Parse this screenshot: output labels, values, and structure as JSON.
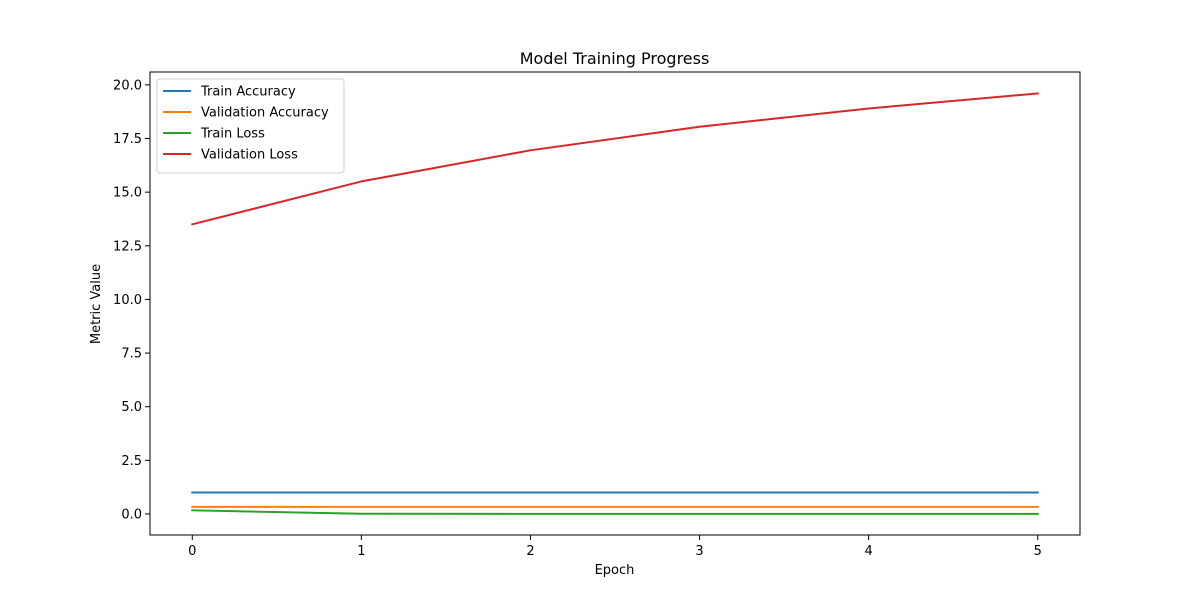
{
  "chart_data": {
    "type": "line",
    "title": "Model Training Progress",
    "xlabel": "Epoch",
    "ylabel": "Metric Value",
    "x": [
      0,
      1,
      2,
      3,
      4,
      5
    ],
    "xlim": [
      -0.25,
      5.25
    ],
    "ylim": [
      -0.98,
      20.6
    ],
    "xticks": [
      0,
      1,
      2,
      3,
      4,
      5
    ],
    "xtick_labels": [
      "0",
      "1",
      "2",
      "3",
      "4",
      "5"
    ],
    "yticks": [
      0,
      2.5,
      5,
      7.5,
      10,
      12.5,
      15,
      17.5,
      20
    ],
    "ytick_labels": [
      "0.0",
      "2.5",
      "5.0",
      "7.5",
      "10.0",
      "12.5",
      "15.0",
      "17.5",
      "20.0"
    ],
    "grid": false,
    "legend_position": "top-left",
    "series": [
      {
        "name": "Train Accuracy",
        "color": "#1f77b4",
        "values": [
          1.0,
          1.0,
          1.0,
          1.0,
          1.0,
          1.0
        ]
      },
      {
        "name": "Validation Accuracy",
        "color": "#ff7f0e",
        "values": [
          0.33,
          0.33,
          0.33,
          0.33,
          0.33,
          0.33
        ]
      },
      {
        "name": "Train Loss",
        "color": "#2ca02c",
        "values": [
          0.17,
          0.01,
          0.005,
          0.003,
          0.002,
          0.002
        ]
      },
      {
        "name": "Validation Loss",
        "color": "#d62728",
        "values": [
          13.5,
          15.5,
          16.95,
          18.05,
          18.9,
          19.6
        ]
      }
    ]
  }
}
